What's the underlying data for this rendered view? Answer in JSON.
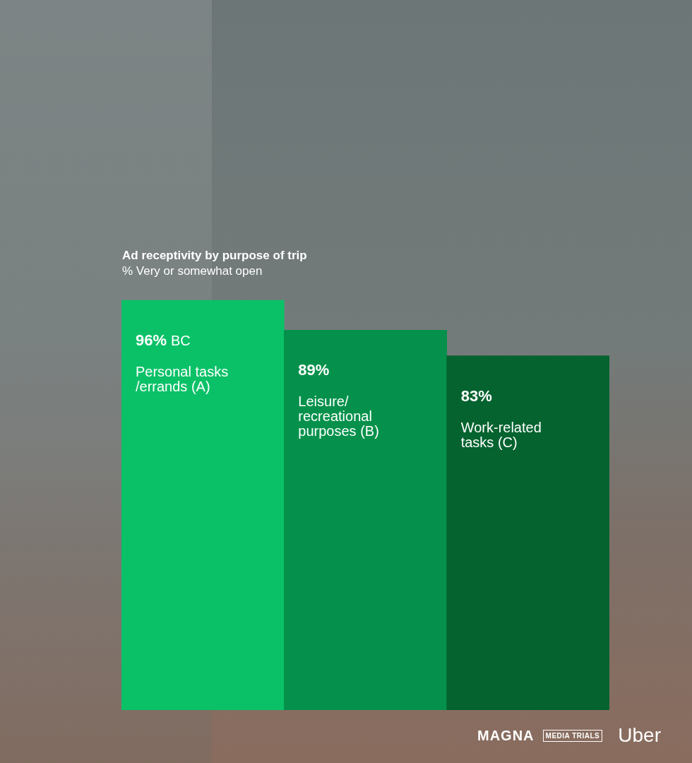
{
  "chart_data": {
    "type": "bar",
    "title": "Ad receptivity by purpose of trip",
    "subtitle": "% Very or somewhat open",
    "categories": [
      "Personal tasks /errands (A)",
      "Leisure/ recreational purposes (B)",
      "Work-related tasks (C)"
    ],
    "values": [
      96,
      89,
      83
    ],
    "value_labels": [
      "96%",
      "89%",
      "83%"
    ],
    "significance": [
      "BC",
      null,
      null
    ],
    "colors": [
      "#0ac167",
      "#05914b",
      "#04632f"
    ],
    "ylim": [
      0,
      100
    ],
    "grid": false,
    "tick_labels": false,
    "data_labels": true
  },
  "logos": [
    "MAGNA",
    "MEDIA TRIALS",
    "Uber"
  ]
}
